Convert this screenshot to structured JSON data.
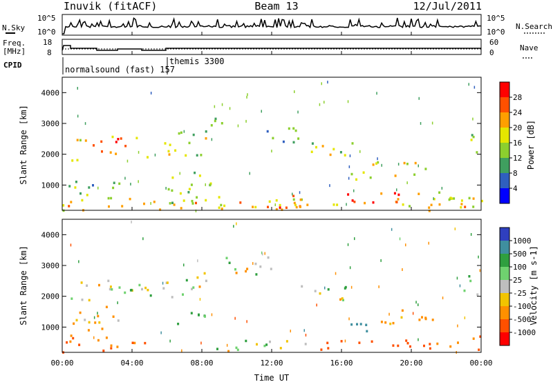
{
  "header": {
    "station": "Inuvik (fitACF)",
    "beam": "Beam 13",
    "date": "12/Jul/2011"
  },
  "nsky_panel": {
    "left_label": "N.Sky",
    "left_ticks": [
      "10^5",
      "10^0"
    ],
    "right_label": "N.Search",
    "right_ticks": [
      "10^5",
      "10^0"
    ]
  },
  "freq_panel": {
    "left_label_top": "Freq.",
    "left_label_bottom": "[MHz]",
    "left_ticks": [
      "18",
      "8"
    ],
    "right_label": "Nave",
    "right_ticks": [
      "60",
      "0"
    ]
  },
  "cpid_panel": {
    "label": "CPID",
    "programs": [
      {
        "name": "normalsound (fast) 157",
        "start_hour": 0.0
      },
      {
        "name": "themis 3300",
        "start_hour": 6.0
      }
    ]
  },
  "power_panel": {
    "ylabel": "Slant Range [km]",
    "cbar_label": "Power [dB]",
    "cbar_ticks": [
      "28",
      "24",
      "20",
      "16",
      "12",
      "8",
      "4"
    ],
    "cbar_colors": [
      "#ff0000",
      "#ff5000",
      "#ff9f00",
      "#e5e600",
      "#8ccf2e",
      "#3f9f5f",
      "#2f5fbf",
      "#0000ff"
    ]
  },
  "velocity_panel": {
    "ylabel": "Slant Range [km]",
    "cbar_label": "Velocity [m s-1]",
    "cbar_ticks": [
      "1000",
      "500",
      "100",
      "25",
      "-25",
      "-100",
      "-500",
      "-1000"
    ],
    "cbar_colors": [
      "#2f3fbf",
      "#3f8f9f",
      "#2f9f3f",
      "#6fd26f",
      "#bebebe",
      "#f2c400",
      "#ff9000",
      "#ff5000",
      "#ff0000"
    ]
  },
  "axes": {
    "xlabel": "Time UT",
    "xticks": [
      "00:00",
      "04:00",
      "08:00",
      "12:00",
      "16:00",
      "20:00",
      "00:00"
    ],
    "yticks": [
      "1000",
      "2000",
      "3000",
      "4000"
    ]
  },
  "chart_data": [
    {
      "type": "heatmap",
      "title": "Power",
      "xlabel": "",
      "ylabel": "Slant Range [km]",
      "xlim": [
        0,
        24
      ],
      "ylim": [
        180,
        4500
      ],
      "colorbar_range": [
        0,
        30
      ],
      "regions": [
        {
          "t0": 0.0,
          "t1": 24.0,
          "r0": 200,
          "r1": 600,
          "value": 18
        },
        {
          "t0": 0.0,
          "t1": 3.5,
          "r0": 600,
          "r1": 1300,
          "value": 10
        },
        {
          "t0": 0.2,
          "t1": 1.5,
          "r0": 1700,
          "r1": 2500,
          "value": 16
        },
        {
          "t0": 1.6,
          "t1": 3.3,
          "r0": 2000,
          "r1": 2700,
          "value": 18
        },
        {
          "t0": 3.0,
          "t1": 4.5,
          "r0": 2100,
          "r1": 2700,
          "value": 22
        },
        {
          "t0": 4.5,
          "t1": 6.2,
          "r0": 1900,
          "r1": 2400,
          "value": 16
        },
        {
          "t0": 5.8,
          "t1": 8.2,
          "r0": 2000,
          "r1": 2800,
          "value": 14
        },
        {
          "t0": 6.0,
          "t1": 8.5,
          "r0": 300,
          "r1": 1500,
          "value": 12
        },
        {
          "t0": 8.0,
          "t1": 9.5,
          "r0": 2700,
          "r1": 3300,
          "value": 8
        },
        {
          "t0": 8.5,
          "t1": 14.5,
          "r0": 300,
          "r1": 700,
          "value": 22
        },
        {
          "t0": 11.0,
          "t1": 13.5,
          "r0": 2400,
          "r1": 3000,
          "value": 8
        },
        {
          "t0": 14.0,
          "t1": 17.5,
          "r0": 1900,
          "r1": 2400,
          "value": 14
        },
        {
          "t0": 16.5,
          "t1": 18.5,
          "r0": 1100,
          "r1": 1800,
          "value": 16
        },
        {
          "t0": 16.0,
          "t1": 20.5,
          "r0": 300,
          "r1": 800,
          "value": 24
        },
        {
          "t0": 19.0,
          "t1": 21.0,
          "r0": 1300,
          "r1": 1900,
          "value": 14
        },
        {
          "t0": 21.0,
          "t1": 24.0,
          "r0": 300,
          "r1": 900,
          "value": 16
        },
        {
          "t0": 22.8,
          "t1": 24.0,
          "r0": 2000,
          "r1": 2700,
          "value": 10
        }
      ]
    },
    {
      "type": "heatmap",
      "title": "Velocity",
      "xlabel": "Time UT",
      "ylabel": "Slant Range [km]",
      "xlim": [
        0,
        24
      ],
      "ylim": [
        180,
        4500
      ],
      "colorbar_range": [
        -1000,
        1000
      ],
      "regions": [
        {
          "t0": 0.0,
          "t1": 5.0,
          "r0": 200,
          "r1": 800,
          "value": -300
        },
        {
          "t0": 0.0,
          "t1": 4.0,
          "r0": 1900,
          "r1": 2600,
          "value": 0
        },
        {
          "t0": 0.3,
          "t1": 3.5,
          "r0": 900,
          "r1": 1700,
          "value": -80
        },
        {
          "t0": 3.0,
          "t1": 6.0,
          "r0": 2000,
          "r1": 2600,
          "value": 0
        },
        {
          "t0": 6.0,
          "t1": 8.3,
          "r0": 2000,
          "r1": 2800,
          "value": 0
        },
        {
          "t0": 6.5,
          "t1": 8.5,
          "r0": 900,
          "r1": 1500,
          "value": 60
        },
        {
          "t0": 9.0,
          "t1": 12.5,
          "r0": 2700,
          "r1": 3300,
          "value": 0
        },
        {
          "t0": 8.5,
          "t1": 14.0,
          "r0": 250,
          "r1": 700,
          "value": 0
        },
        {
          "t0": 13.0,
          "t1": 16.5,
          "r0": 1900,
          "r1": 2400,
          "value": 0
        },
        {
          "t0": 16.5,
          "t1": 18.0,
          "r0": 900,
          "r1": 1600,
          "value": 400
        },
        {
          "t0": 14.0,
          "t1": 21.0,
          "r0": 250,
          "r1": 600,
          "value": -500
        },
        {
          "t0": 18.0,
          "t1": 21.5,
          "r0": 1000,
          "r1": 1600,
          "value": -100
        },
        {
          "t0": 21.0,
          "t1": 24.0,
          "r0": 250,
          "r1": 800,
          "value": -300
        },
        {
          "t0": 22.8,
          "t1": 24.0,
          "r0": 2000,
          "r1": 2700,
          "value": 50
        }
      ]
    }
  ]
}
